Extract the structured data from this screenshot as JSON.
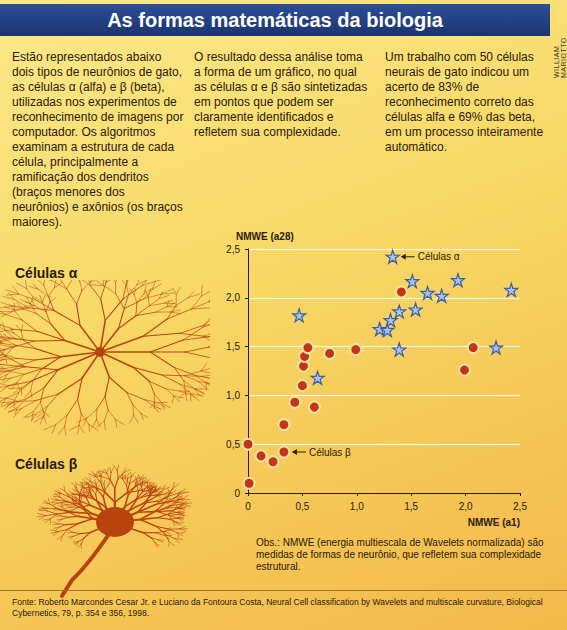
{
  "header": {
    "title": "As formas matemáticas da biologia",
    "credit": "WILLIAM MARIOTTO"
  },
  "columns": [
    "Estão representados abaixo dois tipos de neurônios de gato, as células α (alfa) e β (beta), utilizadas nos experimentos de reconhecimento de imagens por computador. Os algoritmos examinam a estrutura de cada célula, principalmente a ramificação dos dendritos (braços menores dos neurônios) e axônios (os braços maiores).",
    "O resultado dessa análise toma a forma de um gráfico, no qual as células α e β são sintetizadas em pontos que podem ser claramente identificados e refletem sua complexidade.",
    "Um trabalho com 50 células neurais de gato indicou um acerto de 83% de reconhecimento correto das células alfa e 69% das beta, em um processo inteiramente automático."
  ],
  "cell_labels": [
    "Células α",
    "Células β"
  ],
  "chart_data": {
    "type": "scatter",
    "x_label": "NMWE (a1)",
    "y_label": "NMWE (a28)",
    "series": [
      {
        "name": "Células α",
        "color": "#a9c4ea",
        "marker": "star",
        "x": [
          0.47,
          0.64,
          1.21,
          1.28,
          1.31,
          1.33,
          1.39,
          1.39,
          1.51,
          1.54,
          1.65,
          1.78,
          1.93,
          2.28,
          2.42
        ],
        "values": [
          1.82,
          1.18,
          1.68,
          1.67,
          1.77,
          2.42,
          1.86,
          1.47,
          2.17,
          1.88,
          2.05,
          2.02,
          2.18,
          1.49,
          2.08
        ]
      },
      {
        "name": "Células β",
        "color": "#c4331b",
        "marker": "circle",
        "x": [
          0.0,
          0.01,
          0.12,
          0.23,
          0.33,
          0.33,
          0.43,
          0.5,
          0.51,
          0.52,
          0.55,
          0.61,
          0.75,
          0.99,
          1.41,
          1.99,
          2.07
        ],
        "values": [
          0.5,
          0.1,
          0.38,
          0.32,
          0.42,
          0.7,
          0.93,
          1.1,
          1.3,
          1.4,
          1.49,
          0.88,
          1.43,
          1.47,
          2.06,
          1.26,
          1.49
        ]
      }
    ],
    "xlim": [
      0,
      2.5
    ],
    "ylim": [
      0,
      2.5
    ],
    "xticks": [
      0,
      {
        "value": 0.5,
        "label": "0,5"
      },
      {
        "value": 1,
        "label": "1,0"
      },
      {
        "value": 1.5,
        "label": "1,5"
      },
      {
        "value": 2,
        "label": "2,0"
      },
      {
        "value": 2.5,
        "label": "2,5"
      }
    ],
    "yticks": [
      0,
      {
        "value": 0.5,
        "label": "0,5"
      },
      {
        "value": 1,
        "label": "1,0"
      },
      {
        "value": 1.5,
        "label": "1,5"
      },
      {
        "value": 2,
        "label": "2,0"
      },
      {
        "value": 2.5,
        "label": "2,5"
      }
    ],
    "grid": true,
    "annotations": [
      {
        "text": "Células α",
        "x": 1.33,
        "y": 2.42
      },
      {
        "text": "Células β",
        "x": 0.33,
        "y": 0.42
      }
    ],
    "note": "Obs.: NMWE (energia multiescala de Wavelets normalizada) são medidas de formas de neurônio, que refletem sua complexidade estrutural."
  },
  "source": "Fonte: Roberto Marcondes Cesar Jr. e Luciano da Fontoura Costa, Neural Cell classification by Wavelets and multiscale curvature, Biological Cybernetics, 79, p. 354 e 356, 1998."
}
